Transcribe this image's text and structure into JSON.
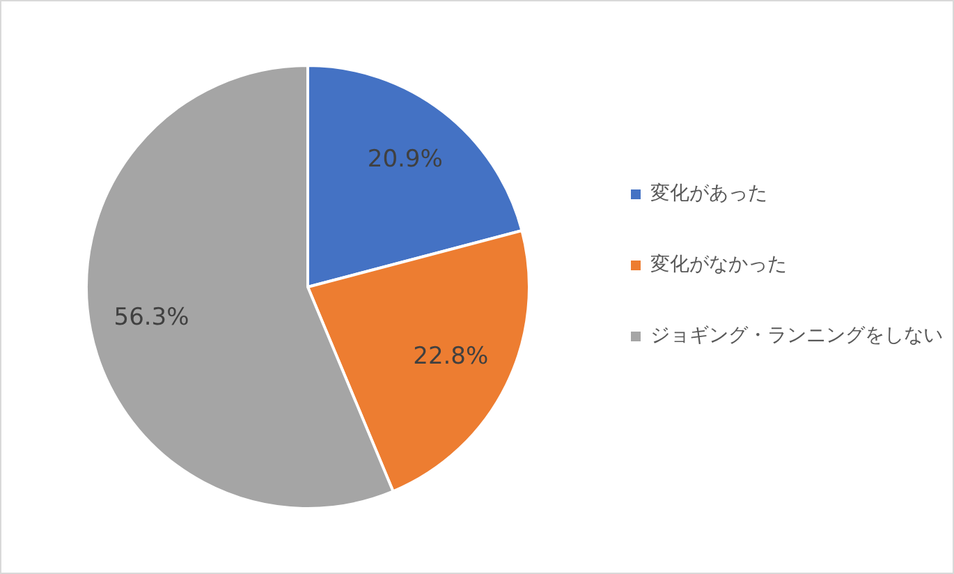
{
  "chart_data": {
    "type": "pie",
    "categories": [
      "変化があった",
      "変化がなかった",
      "ジョギング・ランニングをしない"
    ],
    "values": [
      20.9,
      22.8,
      56.3
    ],
    "colors": [
      "#4472c4",
      "#ed7d31",
      "#a5a5a5"
    ],
    "value_labels": [
      "20.9%",
      "22.8%",
      "56.3%"
    ],
    "legend": "right"
  }
}
